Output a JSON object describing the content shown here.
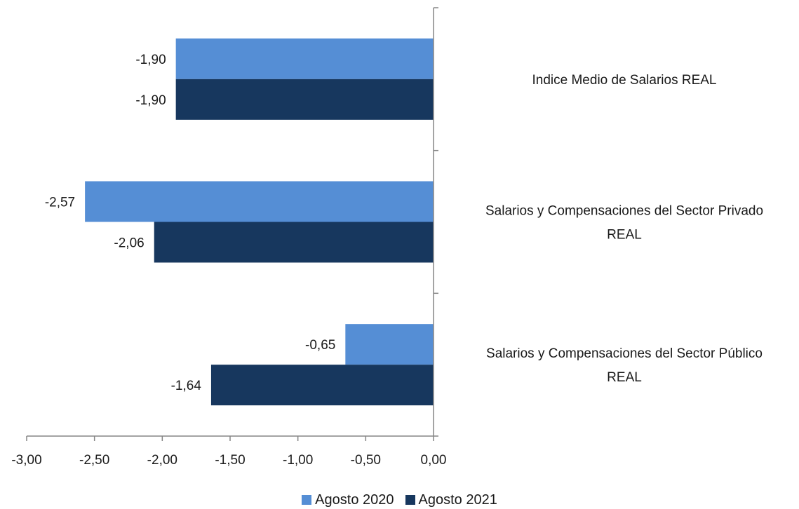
{
  "chart_data": {
    "type": "bar",
    "orientation": "horizontal",
    "categories": [
      "Indice Medio de Salarios REAL",
      "Salarios y Compensaciones del Sector Privado REAL",
      "Salarios y Compensaciones del Sector Público REAL"
    ],
    "series": [
      {
        "name": "Agosto 2020",
        "color": "#558ED5",
        "values": [
          -1.9,
          -2.57,
          -0.65
        ],
        "labels": [
          "-1,90",
          "-2,57",
          "-0,65"
        ]
      },
      {
        "name": "Agosto 2021",
        "color": "#17375E",
        "values": [
          -1.9,
          -2.06,
          -1.64
        ],
        "labels": [
          "-1,90",
          "-2,06",
          "-1,64"
        ]
      }
    ],
    "xlim": [
      -3.0,
      0.0
    ],
    "xticks": [
      -3.0,
      -2.5,
      -2.0,
      -1.5,
      -1.0,
      -0.5,
      0.0
    ],
    "xtick_labels": [
      "-3,00",
      "-2,50",
      "-2,00",
      "-1,50",
      "-1,00",
      "-0,50",
      "0,00"
    ],
    "category_label_lines": [
      [
        "Indice Medio de Salarios REAL"
      ],
      [
        "Salarios y Compensaciones del Sector Privado",
        "REAL"
      ],
      [
        "Salarios y Compensaciones del Sector Público",
        "REAL"
      ]
    ],
    "grid": false,
    "legend": "bottom-center"
  }
}
